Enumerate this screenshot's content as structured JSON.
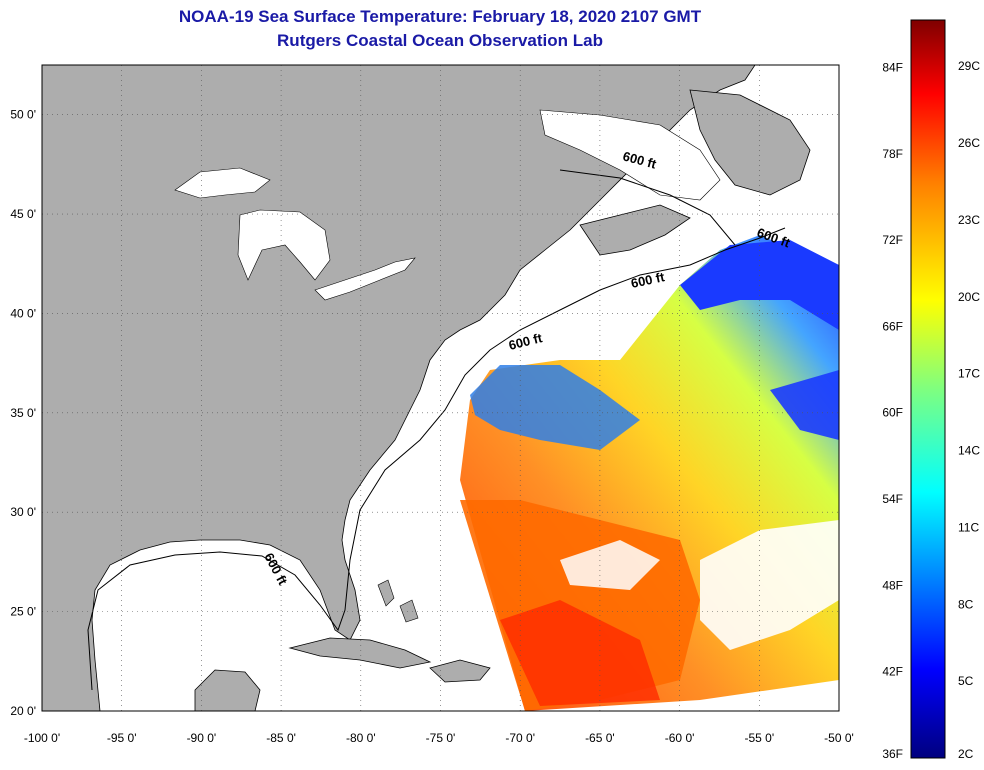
{
  "titles": {
    "line1": "NOAA-19 Sea Surface Temperature:  February 18, 2020 2107 GMT",
    "line2": "Rutgers Coastal Ocean Observation Lab"
  },
  "axes": {
    "longitude_labels": [
      "-100 0'",
      "-95 0'",
      "-90 0'",
      "-85 0'",
      "-80 0'",
      "-75 0'",
      "-70 0'",
      "-65 0'",
      "-60 0'",
      "-55 0'",
      "-50 0'"
    ],
    "longitude_values": [
      -100,
      -95,
      -90,
      -85,
      -80,
      -75,
      -70,
      -65,
      -60,
      -55,
      -50
    ],
    "latitude_labels": [
      "20 0'",
      "25 0'",
      "30 0'",
      "35 0'",
      "40 0'",
      "45 0'",
      "50 0'"
    ],
    "latitude_values": [
      20,
      25,
      30,
      35,
      40,
      45,
      50
    ],
    "lon_range": [
      -100,
      -50
    ],
    "lat_range": [
      20,
      52.5
    ],
    "grid": "dotted"
  },
  "isobath": {
    "label": "600 ft"
  },
  "colorbar": {
    "fahrenheit_labels": [
      "36F",
      "42F",
      "48F",
      "54F",
      "60F",
      "66F",
      "72F",
      "78F",
      "84F"
    ],
    "celsius_labels": [
      "2C",
      "5C",
      "8C",
      "11C",
      "14C",
      "17C",
      "20C",
      "23C",
      "26C",
      "29C"
    ],
    "scale_colors": [
      "#00007f",
      "#0000ff",
      "#007fff",
      "#00ffff",
      "#7fff7f",
      "#ffff00",
      "#ff7f00",
      "#ff0000",
      "#7f0000"
    ]
  },
  "colors": {
    "land": "#adadad",
    "title": "#1a1aa6",
    "cloud": "#ffffff"
  }
}
